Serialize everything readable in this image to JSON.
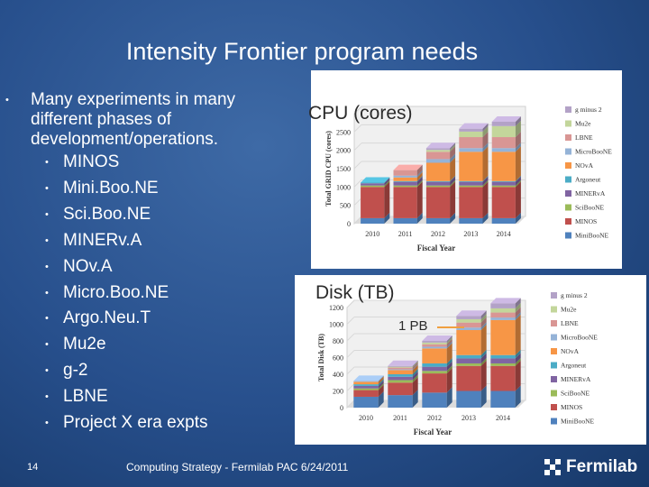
{
  "slide": {
    "title": "Intensity Frontier program needs",
    "bullet_main": "Many experiments in many different phases of development/operations.",
    "sub_bullets": [
      "MINOS",
      "Mini.Boo.NE",
      "Sci.Boo.NE",
      "MINERv.A",
      "NOv.A",
      "Micro.Boo.NE",
      "Argo.Neu.T",
      "Mu2e",
      "g-2",
      "LBNE",
      "Project X era expts"
    ],
    "page_number": "14",
    "footer": "Computing Strategy  - Fermilab PAC 6/24/2011",
    "logo_text": "Fermilab"
  },
  "overlays": {
    "cpu_label": "CPU (cores)",
    "disk_label": "Disk (TB)",
    "pb_annotation": "1 PB"
  },
  "chart_data": [
    {
      "type": "bar",
      "stacked": true,
      "categories": [
        "2010",
        "2011",
        "2012",
        "2013",
        "2014"
      ],
      "xlabel": "Fiscal Year",
      "ylabel": "Total GRID CPU (cores)",
      "ylim": [
        0,
        3000
      ],
      "yticks": [
        0,
        500,
        1000,
        1500,
        2000,
        2500
      ],
      "legend_position": "right",
      "series": [
        {
          "name": "MiniBooNE",
          "color": "#4f81bd",
          "values": [
            150,
            150,
            150,
            150,
            150
          ]
        },
        {
          "name": "MINOS",
          "color": "#c0504d",
          "values": [
            850,
            850,
            850,
            850,
            850
          ]
        },
        {
          "name": "SciBooNE",
          "color": "#9bbb59",
          "values": [
            40,
            40,
            40,
            40,
            40
          ]
        },
        {
          "name": "MINERvA",
          "color": "#8064a2",
          "values": [
            60,
            100,
            100,
            100,
            100
          ]
        },
        {
          "name": "Argoneut",
          "color": "#4bacc6",
          "values": [
            20,
            20,
            20,
            20,
            20
          ]
        },
        {
          "name": "NOvA",
          "color": "#f79646",
          "values": [
            0,
            100,
            500,
            800,
            800
          ]
        },
        {
          "name": "MicroBooNE",
          "color": "#95b3d7",
          "values": [
            0,
            50,
            100,
            100,
            100
          ]
        },
        {
          "name": "LBNE",
          "color": "#d99694",
          "values": [
            0,
            150,
            200,
            300,
            300
          ]
        },
        {
          "name": "Mu2e",
          "color": "#c3d69b",
          "values": [
            0,
            0,
            50,
            150,
            300
          ]
        },
        {
          "name": "g minus 2",
          "color": "#b3a2c7",
          "values": [
            0,
            0,
            50,
            80,
            120
          ]
        }
      ]
    },
    {
      "type": "bar",
      "stacked": true,
      "categories": [
        "2010",
        "2011",
        "2012",
        "2013",
        "2014"
      ],
      "xlabel": "Fiscal Year",
      "ylabel": "Total Disk (TB)",
      "ylim": [
        0,
        1200
      ],
      "yticks": [
        0,
        200,
        400,
        600,
        800,
        1000,
        1200
      ],
      "legend_position": "right",
      "series": [
        {
          "name": "MiniBooNE",
          "color": "#4f81bd",
          "values": [
            130,
            150,
            180,
            200,
            200
          ]
        },
        {
          "name": "MINOS",
          "color": "#c0504d",
          "values": [
            80,
            150,
            230,
            300,
            300
          ]
        },
        {
          "name": "SciBooNE",
          "color": "#9bbb59",
          "values": [
            20,
            30,
            30,
            30,
            30
          ]
        },
        {
          "name": "MINERvA",
          "color": "#8064a2",
          "values": [
            30,
            40,
            50,
            60,
            60
          ]
        },
        {
          "name": "Argoneut",
          "color": "#4bacc6",
          "values": [
            20,
            30,
            40,
            40,
            40
          ]
        },
        {
          "name": "NOvA",
          "color": "#f79646",
          "values": [
            30,
            50,
            180,
            300,
            420
          ]
        },
        {
          "name": "MicroBooNE",
          "color": "#95b3d7",
          "values": [
            10,
            10,
            20,
            30,
            30
          ]
        },
        {
          "name": "LBNE",
          "color": "#d99694",
          "values": [
            0,
            20,
            30,
            60,
            60
          ]
        },
        {
          "name": "Mu2e",
          "color": "#c3d69b",
          "values": [
            0,
            10,
            20,
            40,
            50
          ]
        },
        {
          "name": "g minus 2",
          "color": "#b3a2c7",
          "values": [
            0,
            10,
            20,
            40,
            60
          ]
        }
      ]
    }
  ]
}
